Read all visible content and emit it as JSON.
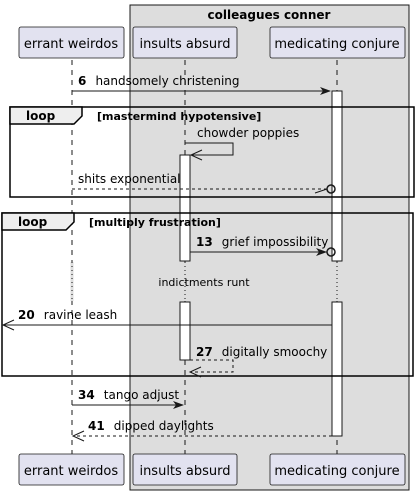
{
  "box": {
    "title": "colleagues conner",
    "fill": "#dddddd"
  },
  "participants": {
    "p1": "errant weirdos",
    "p2": "insults absurd",
    "p3": "medicating conjure"
  },
  "messages": {
    "m1": {
      "num": "6",
      "text": "handsomely christening"
    },
    "m2": {
      "num": "",
      "text": "chowder poppies"
    },
    "m3": {
      "num": "",
      "text": "shits exponential"
    },
    "m4": {
      "num": "13",
      "text": "grief impossibility"
    },
    "m5": {
      "num": "20",
      "text": "ravine leash"
    },
    "m6": {
      "num": "27",
      "text": "digitally smoochy"
    },
    "m7": {
      "num": "34",
      "text": "tango adjust"
    },
    "m8": {
      "num": "41",
      "text": "dipped daylights"
    }
  },
  "loops": {
    "l1": {
      "label": "loop",
      "condition": "[mastermind hypotensive]"
    },
    "l2": {
      "label": "loop",
      "condition": "[multiply frustration]"
    }
  },
  "divider": {
    "text": "indictments runt"
  },
  "colors": {
    "participant_fill": "#e2e2f0",
    "participant_border": "#181818",
    "lifeline": "#181818",
    "activation_fill": "#ffffff",
    "frame_fill": "#eeeeee"
  }
}
